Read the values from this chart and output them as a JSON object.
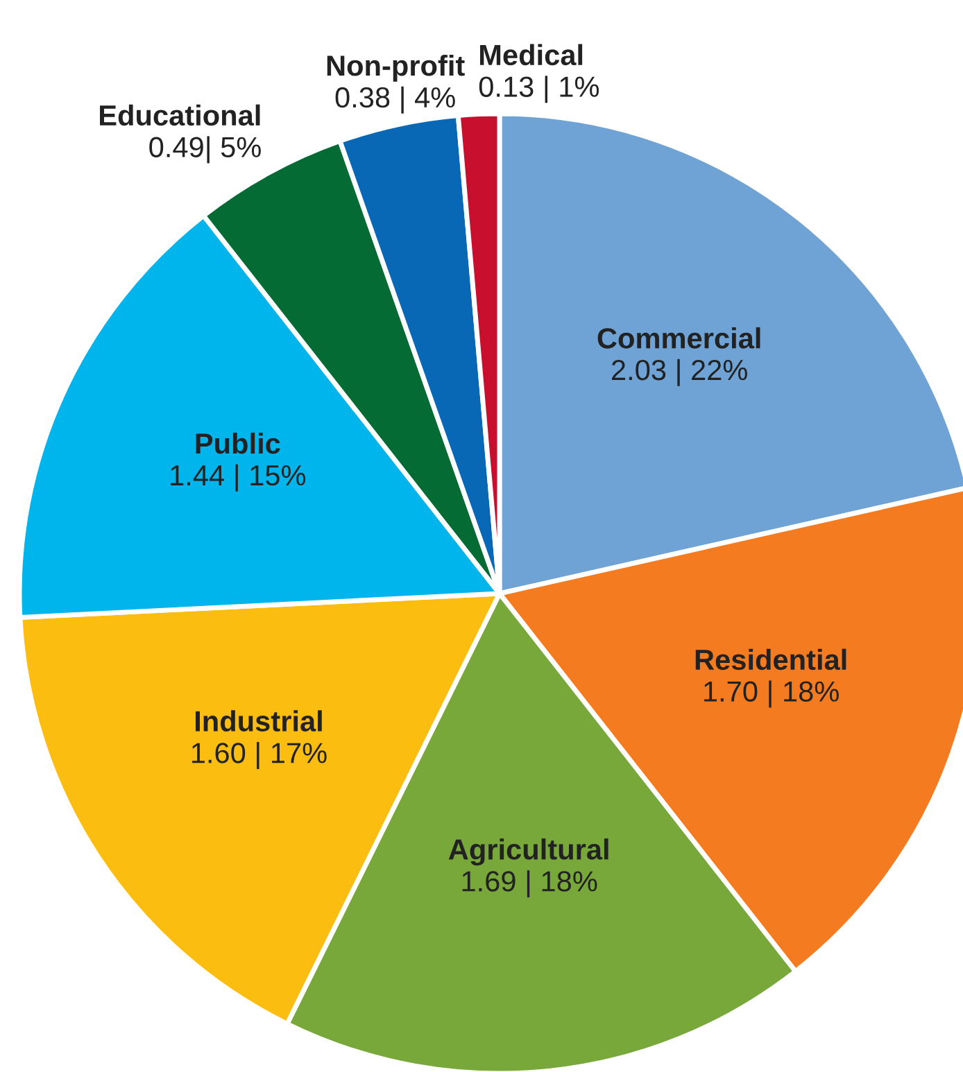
{
  "chart_data": {
    "type": "pie",
    "categories": [
      "Commercial",
      "Residential",
      "Agricultural",
      "Industrial",
      "Public",
      "Educational",
      "Non-profit",
      "Medical"
    ],
    "values": [
      2.03,
      1.7,
      1.69,
      1.6,
      1.44,
      0.49,
      0.38,
      0.13
    ],
    "value_labels": [
      "2.03 | 22%",
      "1.70 | 18%",
      "1.69 | 18%",
      "1.60 | 17%",
      "1.44 | 15%",
      "0.49| 5%",
      "0.38 | 4%",
      "0.13 | 1%"
    ],
    "colors": [
      "#6fa3d6",
      "#f47b20",
      "#78a83a",
      "#fbbe10",
      "#00b5ec",
      "#056b34",
      "#0868b6",
      "#c8102e"
    ]
  }
}
